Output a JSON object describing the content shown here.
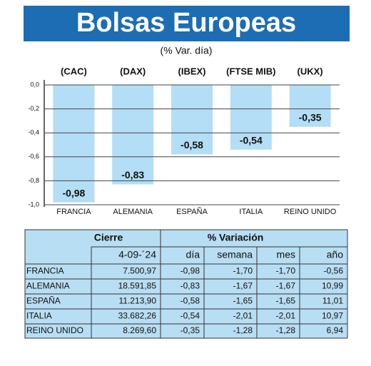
{
  "chart_data": {
    "type": "bar",
    "title": "Bolsas Europeas",
    "subtitle": "(% Var. día)",
    "categories": [
      "FRANCIA",
      "ALEMANIA",
      "ESPAÑA",
      "ITALIA",
      "REINO UNIDO"
    ],
    "indices": [
      "(CAC)",
      "(DAX)",
      "(IBEX)",
      "(FTSE MIB)",
      "(UKX)"
    ],
    "values": [
      -0.98,
      -0.83,
      -0.58,
      -0.54,
      -0.35
    ],
    "value_labels": [
      "-0,98",
      "-0,83",
      "-0,58",
      "-0,54",
      "-0,35"
    ],
    "color": "#b3def5",
    "ylim": [
      -1,
      0
    ],
    "yticks": [
      {
        "value": 0,
        "label": "0,0"
      },
      {
        "value": -0.2,
        "label": "-0,2"
      },
      {
        "value": -0.4,
        "label": "-0,4"
      },
      {
        "value": -0.6,
        "label": "-0,6"
      },
      {
        "value": -0.8,
        "label": "-0,8"
      },
      {
        "value": -1,
        "label": "-1,0"
      }
    ],
    "grid": true
  },
  "table": {
    "header": [
      "Cierre",
      "% Variación"
    ],
    "subheader": [
      "4-09-´24",
      "día",
      "semana",
      "mes",
      "año"
    ],
    "rows": [
      [
        "FRANCIA",
        "7.500,97",
        "-0,98",
        "-1,70",
        "-1,70",
        "-0,56"
      ],
      [
        "ALEMANIA",
        "18.591,85",
        "-0,83",
        "-1,67",
        "-1,67",
        "10,99"
      ],
      [
        "ESPAÑA",
        "11.213,90",
        "-0,58",
        "-1,65",
        "-1,65",
        "11,01"
      ],
      [
        "ITALIA",
        "33.682,26",
        "-0,54",
        "-2,01",
        "-2,01",
        "10,97"
      ],
      [
        "REINO UNIDO",
        "8.269,60",
        "-0,35",
        "-1,28",
        "-1,28",
        "6,94"
      ]
    ]
  }
}
